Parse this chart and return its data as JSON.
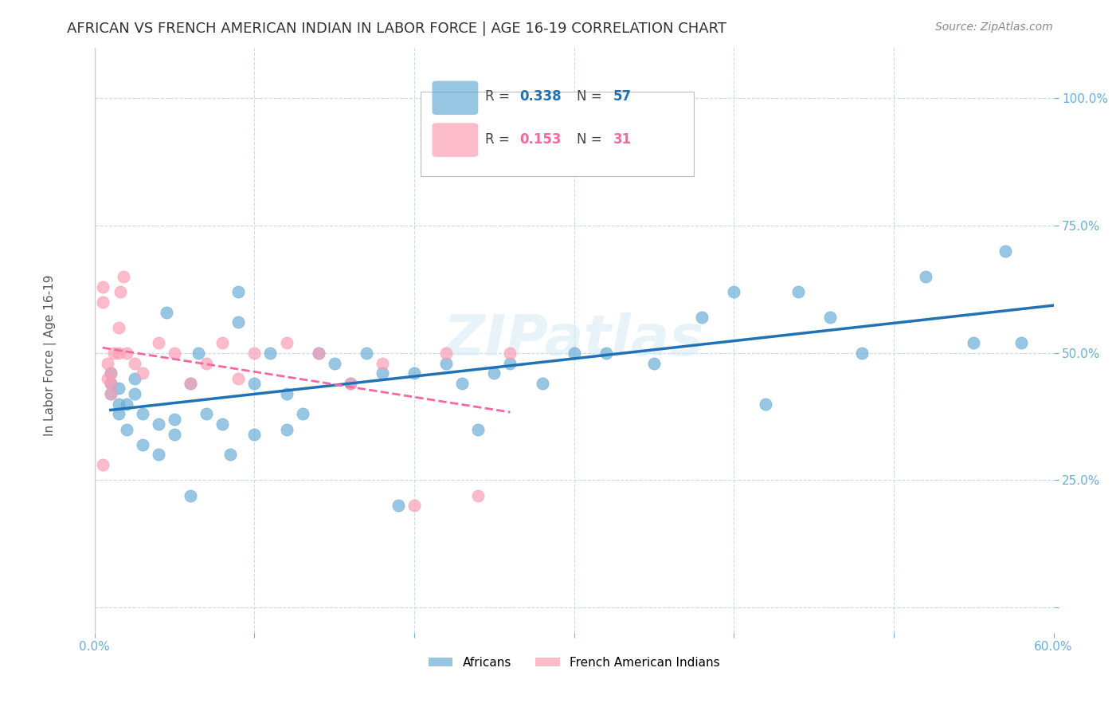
{
  "title": "AFRICAN VS FRENCH AMERICAN INDIAN IN LABOR FORCE | AGE 16-19 CORRELATION CHART",
  "source": "Source: ZipAtlas.com",
  "ylabel": "In Labor Force | Age 16-19",
  "xlim": [
    0.0,
    0.6
  ],
  "ylim": [
    -0.05,
    1.1
  ],
  "yticks": [
    0.0,
    0.25,
    0.5,
    0.75,
    1.0
  ],
  "ytick_labels": [
    "",
    "25.0%",
    "50.0%",
    "75.0%",
    "100.0%"
  ],
  "xticks": [
    0.0,
    0.1,
    0.2,
    0.3,
    0.4,
    0.5,
    0.6
  ],
  "watermark": "ZIPatlas",
  "blue_R": "0.338",
  "blue_N": "57",
  "pink_R": "0.153",
  "pink_N": "31",
  "blue_color": "#6baed6",
  "pink_color": "#fa9fb5",
  "blue_line_color": "#2171b5",
  "pink_line_color": "#f768a1",
  "axis_color": "#6baed6",
  "grid_color": "#c6dbef",
  "blue_x": [
    0.01,
    0.01,
    0.01,
    0.015,
    0.015,
    0.015,
    0.02,
    0.02,
    0.025,
    0.025,
    0.03,
    0.03,
    0.04,
    0.04,
    0.045,
    0.05,
    0.05,
    0.06,
    0.06,
    0.065,
    0.07,
    0.08,
    0.085,
    0.09,
    0.09,
    0.1,
    0.1,
    0.11,
    0.12,
    0.12,
    0.13,
    0.14,
    0.15,
    0.16,
    0.17,
    0.18,
    0.19,
    0.2,
    0.22,
    0.23,
    0.24,
    0.25,
    0.26,
    0.28,
    0.3,
    0.32,
    0.35,
    0.38,
    0.4,
    0.42,
    0.44,
    0.46,
    0.48,
    0.52,
    0.55,
    0.57,
    0.58
  ],
  "blue_y": [
    0.42,
    0.44,
    0.46,
    0.38,
    0.4,
    0.43,
    0.35,
    0.4,
    0.42,
    0.45,
    0.32,
    0.38,
    0.3,
    0.36,
    0.58,
    0.34,
    0.37,
    0.22,
    0.44,
    0.5,
    0.38,
    0.36,
    0.3,
    0.56,
    0.62,
    0.34,
    0.44,
    0.5,
    0.35,
    0.42,
    0.38,
    0.5,
    0.48,
    0.44,
    0.5,
    0.46,
    0.2,
    0.46,
    0.48,
    0.44,
    0.35,
    0.46,
    0.48,
    0.44,
    0.5,
    0.5,
    0.48,
    0.57,
    0.62,
    0.4,
    0.62,
    0.57,
    0.5,
    0.65,
    0.52,
    0.7,
    0.52
  ],
  "pink_x": [
    0.005,
    0.005,
    0.005,
    0.008,
    0.008,
    0.01,
    0.01,
    0.01,
    0.012,
    0.015,
    0.015,
    0.016,
    0.018,
    0.02,
    0.025,
    0.03,
    0.04,
    0.05,
    0.06,
    0.07,
    0.08,
    0.09,
    0.1,
    0.12,
    0.14,
    0.16,
    0.18,
    0.2,
    0.22,
    0.24,
    0.26
  ],
  "pink_y": [
    0.28,
    0.6,
    0.63,
    0.45,
    0.48,
    0.42,
    0.44,
    0.46,
    0.5,
    0.5,
    0.55,
    0.62,
    0.65,
    0.5,
    0.48,
    0.46,
    0.52,
    0.5,
    0.44,
    0.48,
    0.52,
    0.45,
    0.5,
    0.52,
    0.5,
    0.44,
    0.48,
    0.2,
    0.5,
    0.22,
    0.5
  ],
  "legend_labels": [
    "Africans",
    "French American Indians"
  ],
  "title_fontsize": 13,
  "label_fontsize": 11,
  "tick_fontsize": 11,
  "source_fontsize": 10
}
